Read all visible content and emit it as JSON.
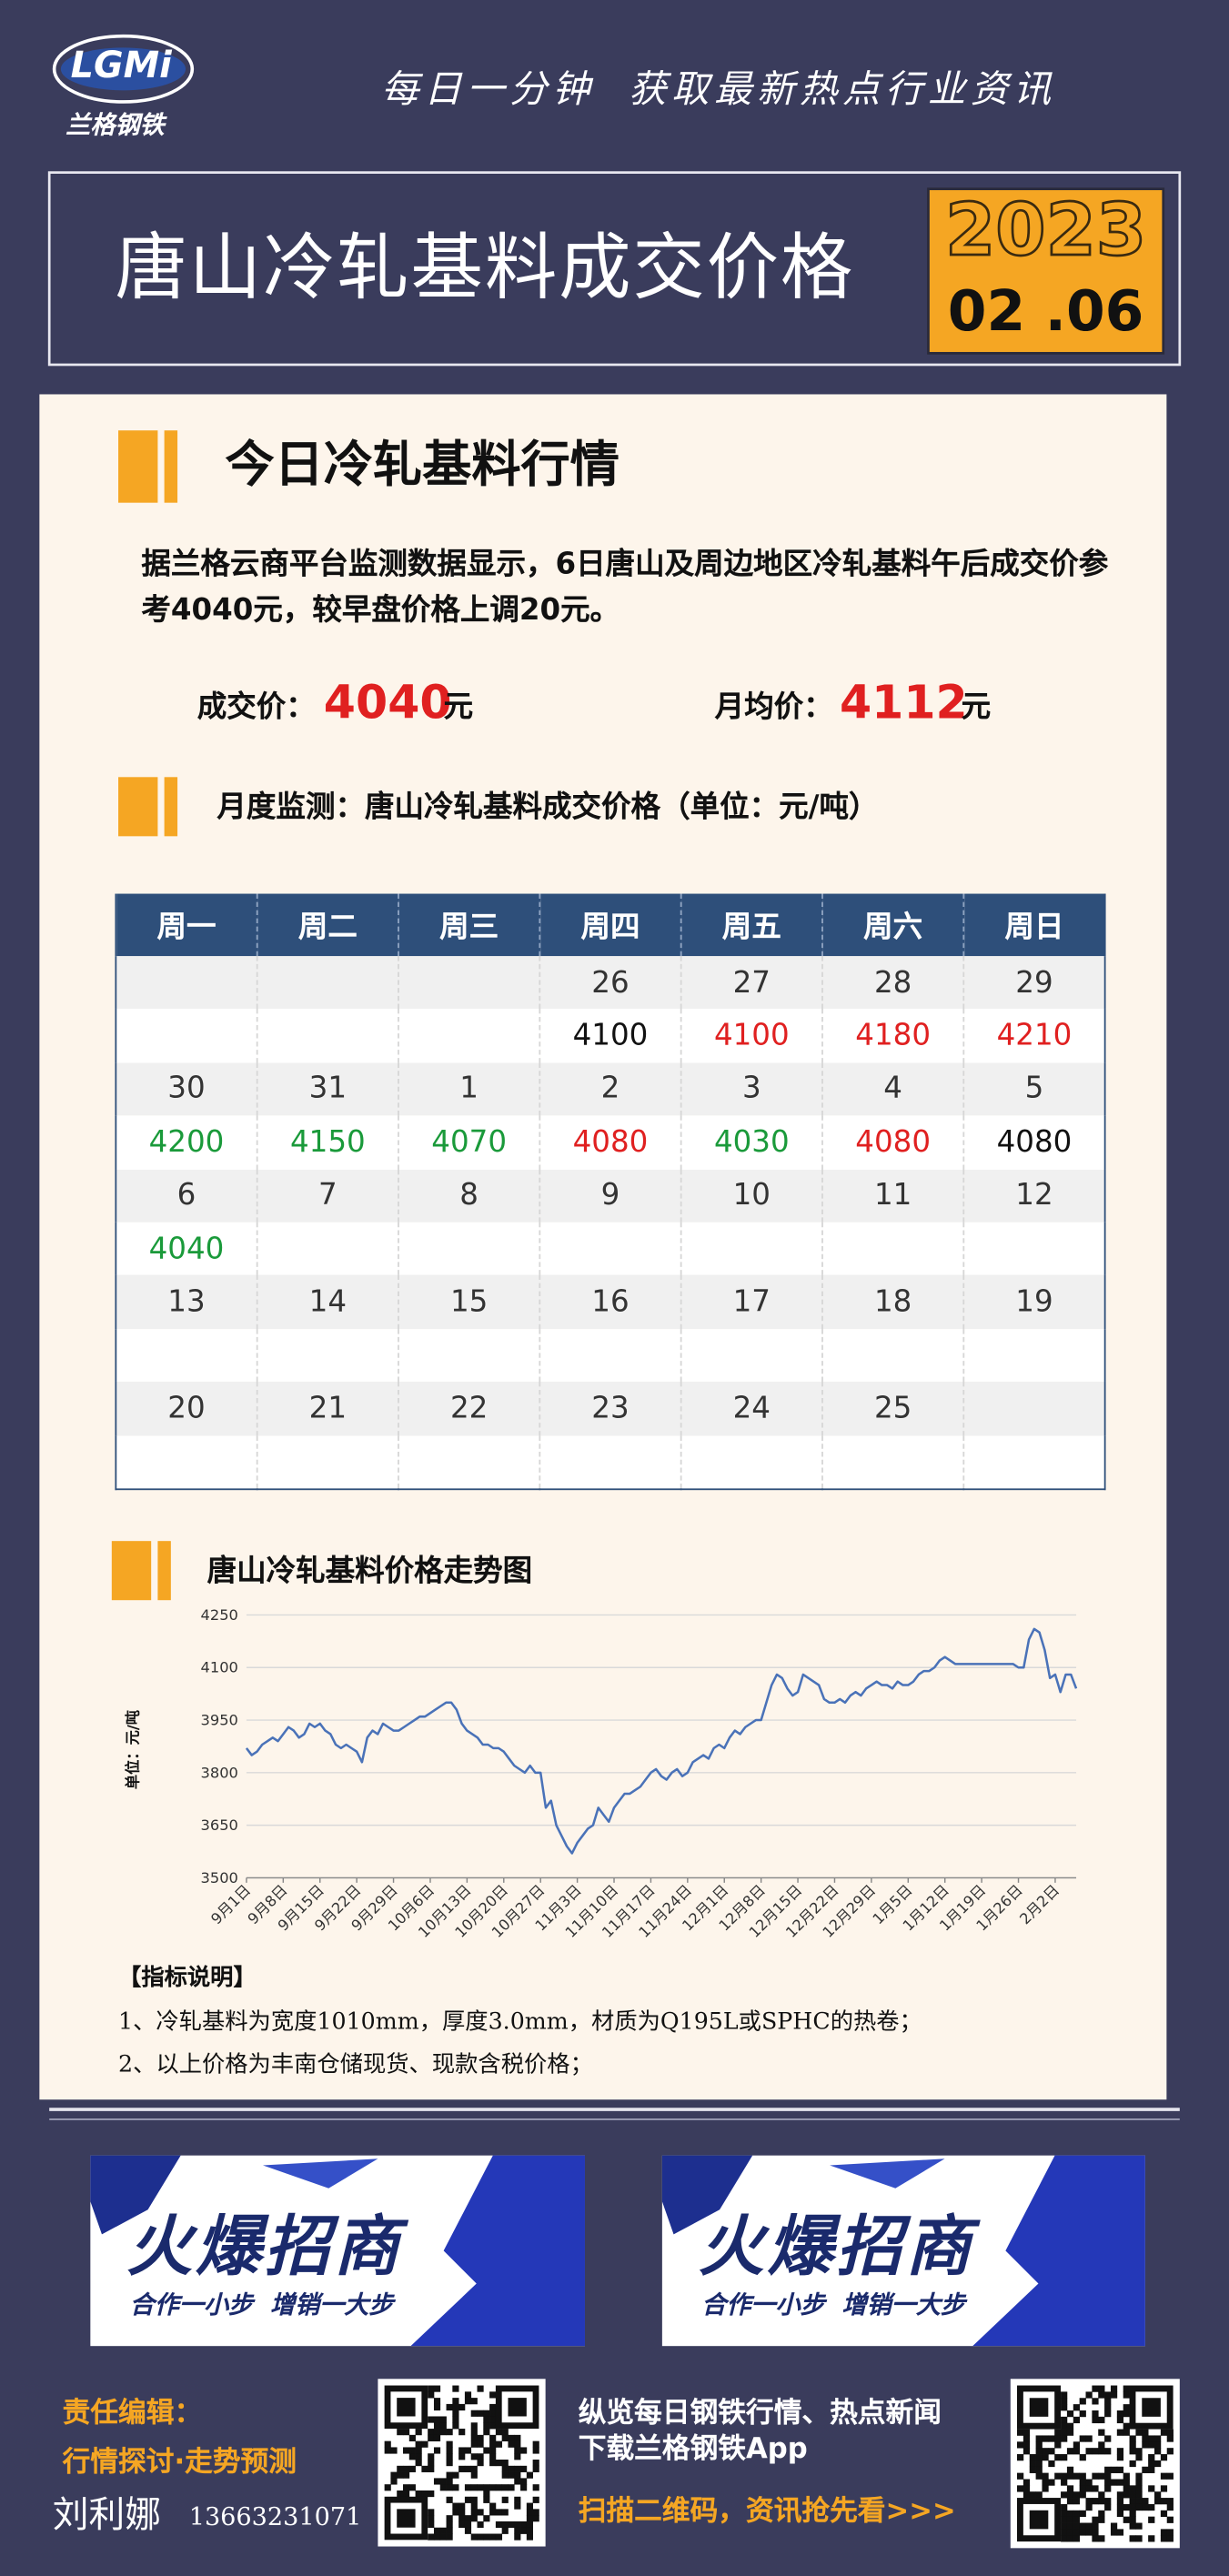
{
  "header": {
    "logo_text": "LGMi",
    "logo_subtext": "兰格钢铁",
    "slogan": "每日一分钟  获取最新热点行业资讯",
    "title": "唐山冷轧基料成交价格",
    "year": "2023",
    "date": "02 .06"
  },
  "section1": {
    "heading": "今日冷轧基料行情",
    "paragraph": "据兰格云商平台监测数据显示，6日唐山及周边地区冷轧基料午后成交价参考4040元，较早盘价格上调20元。",
    "deal_label": "成交价：",
    "deal_price": "4040",
    "deal_unit": "元",
    "avg_label": "月均价：",
    "avg_price": "4112",
    "avg_unit": "元"
  },
  "section2": {
    "heading": "月度监测：唐山冷轧基料成交价格（单位：元/吨）"
  },
  "table": {
    "header": [
      "周一",
      "周二",
      "周三",
      "周四",
      "周五",
      "周六",
      "周日"
    ],
    "rows": [
      [
        null,
        null,
        null,
        "26",
        "27",
        "28",
        "29"
      ],
      [
        null,
        null,
        null,
        {
          "text": "4100",
          "color": "#111111"
        },
        {
          "text": "4100",
          "color": "#e02020"
        },
        {
          "text": "4180",
          "color": "#e02020"
        },
        {
          "text": "4210",
          "color": "#e02020"
        }
      ],
      [
        "30",
        "31",
        "1",
        "2",
        "3",
        "4",
        "5"
      ],
      [
        {
          "text": "4200",
          "color": "#1a9a3a"
        },
        {
          "text": "4150",
          "color": "#1a9a3a"
        },
        {
          "text": "4070",
          "color": "#1a9a3a"
        },
        {
          "text": "4080",
          "color": "#e02020"
        },
        {
          "text": "4030",
          "color": "#1a9a3a"
        },
        {
          "text": "4080",
          "color": "#e02020"
        },
        {
          "text": "4080",
          "color": "#111111"
        }
      ],
      [
        "6",
        "7",
        "8",
        "9",
        "10",
        "11",
        "12"
      ],
      [
        {
          "text": "4040",
          "color": "#1a9a3a"
        },
        null,
        null,
        null,
        null,
        null,
        null
      ],
      [
        "13",
        "14",
        "15",
        "16",
        "17",
        "18",
        "19"
      ],
      [
        null,
        null,
        null,
        null,
        null,
        null,
        null
      ],
      [
        "20",
        "21",
        "22",
        "23",
        "24",
        "25",
        null
      ],
      [
        null,
        null,
        null,
        null,
        null,
        null,
        null
      ]
    ]
  },
  "chart_data": {
    "type": "line",
    "title": "唐山冷轧基料价格走势图",
    "y_label": "单位：元/吨",
    "categories": [
      "9月1日",
      null,
      null,
      null,
      null,
      null,
      null,
      "9月8日",
      null,
      null,
      null,
      null,
      null,
      null,
      "9月15日",
      null,
      null,
      null,
      null,
      null,
      null,
      "9月22日",
      null,
      null,
      null,
      null,
      null,
      null,
      "9月29日",
      null,
      null,
      null,
      null,
      null,
      null,
      "10月6日",
      null,
      null,
      null,
      null,
      null,
      null,
      "10月13日",
      null,
      null,
      null,
      null,
      null,
      null,
      "10月20日",
      null,
      null,
      null,
      null,
      null,
      null,
      "10月27日",
      null,
      null,
      null,
      null,
      null,
      null,
      "11月3日",
      null,
      null,
      null,
      null,
      null,
      null,
      "11月10日",
      null,
      null,
      null,
      null,
      null,
      null,
      "11月17日",
      null,
      null,
      null,
      null,
      null,
      null,
      "11月24日",
      null,
      null,
      null,
      null,
      null,
      null,
      "12月1日",
      null,
      null,
      null,
      null,
      null,
      null,
      "12月8日",
      null,
      null,
      null,
      null,
      null,
      null,
      "12月15日",
      null,
      null,
      null,
      null,
      null,
      null,
      "12月22日",
      null,
      null,
      null,
      null,
      null,
      null,
      "12月29日",
      null,
      null,
      null,
      null,
      null,
      null,
      "1月5日",
      null,
      null,
      null,
      null,
      null,
      null,
      "1月12日",
      null,
      null,
      null,
      null,
      null,
      null,
      "1月19日",
      null,
      null,
      null,
      null,
      null,
      null,
      "1月26日",
      null,
      null,
      null,
      null,
      null,
      null,
      "2月2日",
      null,
      null,
      null,
      null
    ],
    "series": [
      {
        "color": "#4a72b8",
        "values": [
          3870,
          3850,
          3860,
          3880,
          3890,
          3900,
          3890,
          3910,
          3930,
          3920,
          3900,
          3910,
          3940,
          3930,
          3940,
          3920,
          3910,
          3880,
          3870,
          3880,
          3870,
          3860,
          3830,
          3900,
          3920,
          3910,
          3940,
          3930,
          3920,
          3920,
          3930,
          3940,
          3950,
          3960,
          3960,
          3970,
          3980,
          3990,
          4000,
          4000,
          3980,
          3940,
          3920,
          3910,
          3900,
          3880,
          3880,
          3870,
          3870,
          3860,
          3840,
          3820,
          3810,
          3800,
          3820,
          3800,
          3800,
          3700,
          3720,
          3650,
          3620,
          3590,
          3570,
          3600,
          3620,
          3640,
          3650,
          3700,
          3680,
          3660,
          3700,
          3720,
          3740,
          3740,
          3750,
          3760,
          3780,
          3800,
          3810,
          3790,
          3780,
          3800,
          3810,
          3790,
          3800,
          3830,
          3840,
          3850,
          3840,
          3870,
          3880,
          3870,
          3900,
          3920,
          3910,
          3930,
          3940,
          3950,
          3950,
          4000,
          4050,
          4080,
          4070,
          4040,
          4020,
          4030,
          4080,
          4070,
          4060,
          4050,
          4010,
          4000,
          4000,
          4010,
          4000,
          4020,
          4030,
          4020,
          4040,
          4050,
          4060,
          4050,
          4050,
          4040,
          4060,
          4050,
          4050,
          4060,
          4080,
          4090,
          4090,
          4100,
          4120,
          4130,
          4120,
          4110,
          4110,
          4110,
          4110,
          4110,
          4110,
          4110,
          4110,
          4110,
          4110,
          4110,
          4110,
          4100,
          4100,
          4180,
          4210,
          4200,
          4150,
          4070,
          4080,
          4030,
          4080,
          4080,
          4040
        ]
      }
    ],
    "ylim": [
      3500,
      4250
    ],
    "yticks": [
      3500,
      3650,
      3800,
      3950,
      4100,
      4250
    ],
    "grid": true
  },
  "notes": {
    "heading": "【指标说明】",
    "items": [
      "1、冷轧基料为宽度1010mm，厚度3.0mm，材质为Q195L或SPHC的热卷；",
      "2、以上价格为丰南仓储现货、现款含税价格；"
    ]
  },
  "ads": {
    "banner_title": "火爆招商",
    "banner_subtitle": "合作一小步  增销一大步"
  },
  "footer": {
    "editor_label": "责任编辑：",
    "editor_tagline": "行情探讨·走势预测",
    "editor_name": "刘利娜",
    "phone": "13663231071",
    "promo_line1": "纵览每日钢铁行情、热点新闻",
    "promo_line2": "下载兰格钢铁App",
    "promo_line3": "扫描二维码，资讯抢先看>>>"
  }
}
